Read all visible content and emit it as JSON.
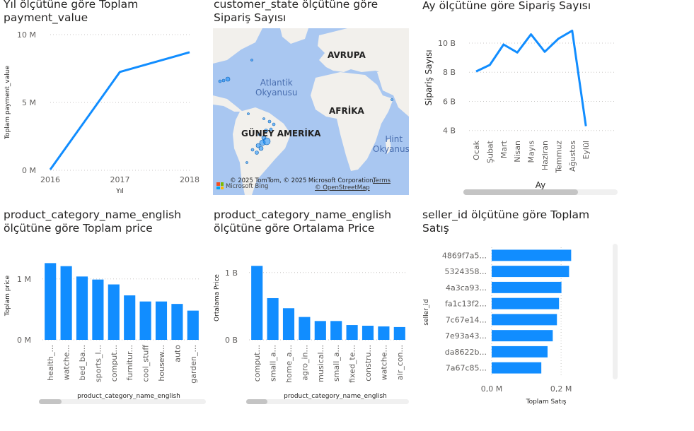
{
  "charts": {
    "year_payment": {
      "title": "Yıl ölçütüne göre Toplam\npayment_value",
      "xlabel": "Yıl",
      "ylabel": "Toplam payment_value",
      "yticks": [
        "0 M",
        "5 M",
        "10 M"
      ]
    },
    "state_map": {
      "title": "customer_state ölçütüne göre\nSipariş Sayısı",
      "labels": {
        "europe": "AVRUPA",
        "atlantic": "Atlantik\nOkyanusu",
        "africa": "AFRİKA",
        "south_america": "GÜNEY AMERİKA",
        "indian": "Hint\nOkyanusu"
      },
      "credit": "© 2025 TomTom, © 2025 Microsoft Corporation,",
      "terms": "Terms",
      "osm": "© OpenStreetMap",
      "bing": "Microsoft Bing"
    },
    "month_orders": {
      "title": "Ay ölçütüne göre Sipariş Sayısı",
      "xlabel": "Ay",
      "ylabel": "Sipariş Sayısı",
      "yticks": [
        "4 B",
        "6 B",
        "8 B",
        "10 B"
      ]
    },
    "cat_total_price": {
      "title": "product_category_name_english\nölçütüne göre Toplam price",
      "xlabel": "product_category_name_english",
      "ylabel": "Toplam price",
      "yticks": [
        "0 M",
        "1 M"
      ]
    },
    "cat_avg_price": {
      "title": "product_category_name_english\nölçütüne göre Ortalama Price",
      "xlabel": "product_category_name_english",
      "ylabel": "Ortalama Price",
      "yticks": [
        "0 B",
        "1 B"
      ]
    },
    "seller_sales": {
      "title": "seller_id ölçütüne göre Toplam\nSatış",
      "xlabel": "Toplam Satış",
      "ylabel": "seller_id",
      "xticks": [
        "0,0 M",
        "0,2 M"
      ]
    }
  },
  "chart_data": [
    {
      "id": "year_payment",
      "type": "line",
      "x": [
        "2016",
        "2017",
        "2018"
      ],
      "values": [
        0.05,
        7.25,
        8.7
      ],
      "unit": "M",
      "ylim": [
        0,
        10
      ],
      "color": "#118dff"
    },
    {
      "id": "state_map",
      "type": "bubble-map",
      "color": "#118dff"
    },
    {
      "id": "month_orders",
      "type": "line",
      "categories": [
        "Ocak",
        "Şubat",
        "Mart",
        "Nisan",
        "Mayıs",
        "Haziran",
        "Temmuz",
        "Ağustos",
        "Eylül"
      ],
      "values": [
        8.05,
        8.5,
        9.9,
        9.35,
        10.6,
        9.4,
        10.3,
        10.85,
        4.3
      ],
      "unit": "B",
      "ylim": [
        3.5,
        11.5
      ],
      "color": "#118dff"
    },
    {
      "id": "cat_total_price",
      "type": "bar",
      "categories": [
        "health_...",
        "watche...",
        "bed_ba...",
        "sports_l...",
        "comput...",
        "furnitur...",
        "cool_stuff",
        "housew...",
        "auto",
        "garden_..."
      ],
      "values": [
        1.26,
        1.21,
        1.04,
        0.99,
        0.91,
        0.73,
        0.63,
        0.63,
        0.59,
        0.48
      ],
      "unit": "M",
      "ylim": [
        0,
        1.45
      ],
      "color": "#118dff"
    },
    {
      "id": "cat_avg_price",
      "type": "bar",
      "categories": [
        "comput...",
        "small_a...",
        "home_a...",
        "agro_in...",
        "musical...",
        "small_a...",
        "fixed_te...",
        "constru...",
        "watche...",
        "air_con..."
      ],
      "values": [
        1.1,
        0.62,
        0.47,
        0.34,
        0.28,
        0.28,
        0.22,
        0.21,
        0.2,
        0.19
      ],
      "unit": "B",
      "ylim": [
        0,
        1.25
      ],
      "color": "#118dff"
    },
    {
      "id": "seller_sales",
      "type": "hbar",
      "categories": [
        "4869f7a5...",
        "5324358...",
        "4a3ca93...",
        "fa1c13f2...",
        "7c67e14...",
        "7e93a43...",
        "da8622b...",
        "7a67c85..."
      ],
      "values": [
        0.229,
        0.223,
        0.201,
        0.194,
        0.188,
        0.176,
        0.161,
        0.143
      ],
      "unit": "M",
      "xlim": [
        0,
        0.32
      ],
      "color": "#118dff"
    }
  ]
}
